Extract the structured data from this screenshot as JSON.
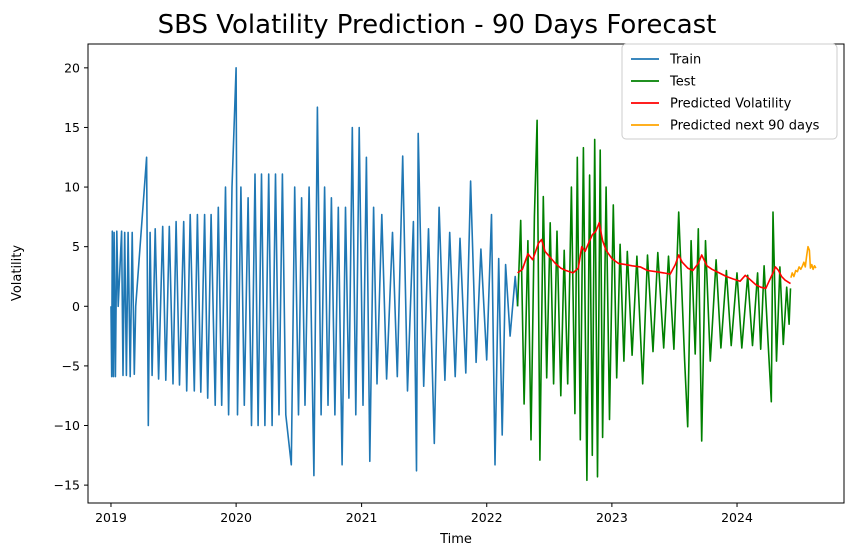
{
  "chart_data": {
    "type": "line",
    "title": "SBS Volatility Prediction - 90 Days Forecast",
    "xlabel": "Time",
    "ylabel": "Volatility",
    "xlim": [
      "2018-10-26",
      "2024-11-08"
    ],
    "ylim": [
      -16.5,
      22
    ],
    "x_ticks": [
      "2019",
      "2020",
      "2021",
      "2022",
      "2023",
      "2024"
    ],
    "y_ticks": [
      -15,
      -10,
      -5,
      0,
      5,
      10,
      15,
      20
    ],
    "grid": false,
    "legend_position": "top-right",
    "series": [
      {
        "name": "Train",
        "color": "#1f77b4",
        "points": [
          [
            "2019-01-01",
            0
          ],
          [
            "2019-01-03",
            -5.9
          ],
          [
            "2019-01-05",
            6.3
          ],
          [
            "2019-01-08",
            -5.9
          ],
          [
            "2019-01-10",
            6.2
          ],
          [
            "2019-01-14",
            -5.9
          ],
          [
            "2019-01-18",
            6.3
          ],
          [
            "2019-01-22",
            0
          ],
          [
            "2019-02-01",
            6.3
          ],
          [
            "2019-02-05",
            -5.8
          ],
          [
            "2019-02-10",
            6.2
          ],
          [
            "2019-02-15",
            -5.8
          ],
          [
            "2019-02-20",
            6.2
          ],
          [
            "2019-02-26",
            -5.9
          ],
          [
            "2019-03-04",
            6.2
          ],
          [
            "2019-03-10",
            -5.7
          ],
          [
            "2019-03-14",
            0
          ],
          [
            "2019-04-15",
            12.5
          ],
          [
            "2019-04-20",
            -10
          ],
          [
            "2019-04-25",
            6.2
          ],
          [
            "2019-05-01",
            -5.8
          ],
          [
            "2019-05-10",
            6.5
          ],
          [
            "2019-05-20",
            -6.1
          ],
          [
            "2019-06-01",
            6.7
          ],
          [
            "2019-06-10",
            -6.2
          ],
          [
            "2019-06-20",
            6.7
          ],
          [
            "2019-07-01",
            -6.5
          ],
          [
            "2019-07-10",
            7.1
          ],
          [
            "2019-07-20",
            -6.6
          ],
          [
            "2019-08-01",
            7.1
          ],
          [
            "2019-08-10",
            -7.1
          ],
          [
            "2019-08-20",
            7.7
          ],
          [
            "2019-09-01",
            -7.1
          ],
          [
            "2019-09-10",
            7.7
          ],
          [
            "2019-09-20",
            -7.2
          ],
          [
            "2019-10-01",
            7.7
          ],
          [
            "2019-10-10",
            -7.7
          ],
          [
            "2019-10-20",
            7.7
          ],
          [
            "2019-11-01",
            -8.3
          ],
          [
            "2019-11-10",
            8.3
          ],
          [
            "2019-11-20",
            -8.3
          ],
          [
            "2019-12-01",
            10
          ],
          [
            "2019-12-10",
            -9.1
          ],
          [
            "2019-12-20",
            10
          ],
          [
            "2020-01-01",
            20
          ],
          [
            "2020-01-05",
            -9.1
          ],
          [
            "2020-01-15",
            10
          ],
          [
            "2020-01-25",
            -8.3
          ],
          [
            "2020-02-05",
            9.1
          ],
          [
            "2020-02-15",
            -10
          ],
          [
            "2020-02-25",
            11.1
          ],
          [
            "2020-03-05",
            -10
          ],
          [
            "2020-03-15",
            11.1
          ],
          [
            "2020-03-25",
            -10
          ],
          [
            "2020-04-05",
            11.1
          ],
          [
            "2020-04-15",
            -10
          ],
          [
            "2020-04-25",
            11.1
          ],
          [
            "2020-05-05",
            -9.1
          ],
          [
            "2020-05-15",
            11.1
          ],
          [
            "2020-05-25",
            -9.1
          ],
          [
            "2020-06-10",
            -13.3
          ],
          [
            "2020-06-20",
            10
          ],
          [
            "2020-07-01",
            -9.1
          ],
          [
            "2020-07-10",
            9.1
          ],
          [
            "2020-07-20",
            -8.3
          ],
          [
            "2020-08-01",
            10
          ],
          [
            "2020-08-15",
            -14.2
          ],
          [
            "2020-08-25",
            16.7
          ],
          [
            "2020-09-05",
            -9.1
          ],
          [
            "2020-09-15",
            10
          ],
          [
            "2020-09-25",
            -8.3
          ],
          [
            "2020-10-05",
            9.1
          ],
          [
            "2020-10-15",
            -9.1
          ],
          [
            "2020-10-25",
            8.3
          ],
          [
            "2020-11-05",
            -13.3
          ],
          [
            "2020-11-15",
            8.3
          ],
          [
            "2020-11-25",
            -7.7
          ],
          [
            "2020-12-05",
            15
          ],
          [
            "2020-12-15",
            -9.1
          ],
          [
            "2020-12-25",
            15
          ],
          [
            "2021-01-05",
            -8.3
          ],
          [
            "2021-01-15",
            12.5
          ],
          [
            "2021-01-25",
            -13
          ],
          [
            "2021-02-05",
            8.3
          ],
          [
            "2021-02-15",
            -6.5
          ],
          [
            "2021-03-01",
            7.7
          ],
          [
            "2021-03-15",
            -6.1
          ],
          [
            "2021-04-01",
            6.2
          ],
          [
            "2021-04-15",
            -5.9
          ],
          [
            "2021-05-01",
            12.6
          ],
          [
            "2021-05-15",
            -7.1
          ],
          [
            "2021-06-01",
            7.1
          ],
          [
            "2021-06-10",
            -13.8
          ],
          [
            "2021-06-15",
            14.5
          ],
          [
            "2021-07-01",
            -6.7
          ],
          [
            "2021-07-15",
            6.5
          ],
          [
            "2021-08-01",
            -11.5
          ],
          [
            "2021-08-15",
            8.3
          ],
          [
            "2021-09-01",
            -6.2
          ],
          [
            "2021-09-15",
            6.2
          ],
          [
            "2021-10-01",
            -5.9
          ],
          [
            "2021-10-15",
            5.7
          ],
          [
            "2021-11-01",
            -5.6
          ],
          [
            "2021-11-15",
            10.5
          ],
          [
            "2021-12-01",
            -4.7
          ],
          [
            "2021-12-15",
            4.8
          ],
          [
            "2022-01-01",
            -4.5
          ],
          [
            "2022-01-15",
            7.7
          ],
          [
            "2022-01-25",
            -13.3
          ],
          [
            "2022-02-05",
            4
          ],
          [
            "2022-02-15",
            -10.8
          ],
          [
            "2022-02-25",
            3.5
          ],
          [
            "2022-03-10",
            -2.5
          ],
          [
            "2022-03-25",
            2.5
          ],
          [
            "2022-04-01",
            0
          ]
        ]
      },
      {
        "name": "Test",
        "color": "#008000",
        "points": [
          [
            "2022-04-01",
            0
          ],
          [
            "2022-04-10",
            7.2
          ],
          [
            "2022-04-20",
            -8.2
          ],
          [
            "2022-05-01",
            5.5
          ],
          [
            "2022-05-10",
            -11.2
          ],
          [
            "2022-05-20",
            7.5
          ],
          [
            "2022-05-28",
            15.6
          ],
          [
            "2022-06-05",
            -12.9
          ],
          [
            "2022-06-15",
            9.2
          ],
          [
            "2022-06-25",
            -6
          ],
          [
            "2022-07-05",
            7
          ],
          [
            "2022-07-15",
            -6.5
          ],
          [
            "2022-07-25",
            6.3
          ],
          [
            "2022-08-05",
            -7.5
          ],
          [
            "2022-08-15",
            4.7
          ],
          [
            "2022-08-25",
            -6.5
          ],
          [
            "2022-09-05",
            10
          ],
          [
            "2022-09-15",
            -9
          ],
          [
            "2022-09-22",
            12.5
          ],
          [
            "2022-10-01",
            -11.2
          ],
          [
            "2022-10-10",
            13.3
          ],
          [
            "2022-10-20",
            -14.6
          ],
          [
            "2022-10-28",
            11
          ],
          [
            "2022-11-05",
            -12.5
          ],
          [
            "2022-11-12",
            14
          ],
          [
            "2022-11-20",
            -14.3
          ],
          [
            "2022-11-28",
            13.1
          ],
          [
            "2022-12-05",
            -11
          ],
          [
            "2022-12-15",
            10
          ],
          [
            "2022-12-25",
            -9.5
          ],
          [
            "2023-01-05",
            8.5
          ],
          [
            "2023-01-15",
            -6
          ],
          [
            "2023-01-25",
            5.2
          ],
          [
            "2023-02-05",
            -4.6
          ],
          [
            "2023-02-15",
            4.6
          ],
          [
            "2023-03-01",
            -4.1
          ],
          [
            "2023-03-15",
            4.2
          ],
          [
            "2023-04-01",
            -6.5
          ],
          [
            "2023-04-15",
            4.3
          ],
          [
            "2023-05-01",
            -3.8
          ],
          [
            "2023-05-15",
            4.5
          ],
          [
            "2023-06-01",
            -3.5
          ],
          [
            "2023-06-15",
            4.2
          ],
          [
            "2023-07-01",
            -3.6
          ],
          [
            "2023-07-15",
            7.9
          ],
          [
            "2023-08-01",
            -4.5
          ],
          [
            "2023-08-10",
            -10.1
          ],
          [
            "2023-08-20",
            5.5
          ],
          [
            "2023-09-01",
            -4
          ],
          [
            "2023-09-10",
            6.5
          ],
          [
            "2023-09-20",
            -11.3
          ],
          [
            "2023-10-01",
            5.5
          ],
          [
            "2023-10-15",
            -4.6
          ],
          [
            "2023-11-01",
            3.9
          ],
          [
            "2023-11-15",
            -3.5
          ],
          [
            "2023-12-01",
            3
          ],
          [
            "2023-12-15",
            -3.3
          ],
          [
            "2024-01-01",
            2.8
          ],
          [
            "2024-01-15",
            -3.5
          ],
          [
            "2024-02-01",
            2.6
          ],
          [
            "2024-02-15",
            -3.3
          ],
          [
            "2024-03-01",
            2.8
          ],
          [
            "2024-03-10",
            -3.6
          ],
          [
            "2024-03-20",
            3.4
          ],
          [
            "2024-04-01",
            -3.2
          ],
          [
            "2024-04-10",
            -8
          ],
          [
            "2024-04-15",
            7.9
          ],
          [
            "2024-04-25",
            -4.6
          ],
          [
            "2024-05-05",
            3.3
          ],
          [
            "2024-05-15",
            -3.2
          ],
          [
            "2024-05-25",
            1.6
          ],
          [
            "2024-06-01",
            -1.5
          ],
          [
            "2024-06-05",
            1.5
          ]
        ]
      },
      {
        "name": "Predicted Volatility",
        "color": "#ff0000",
        "points": [
          [
            "2022-04-01",
            2.8
          ],
          [
            "2022-04-15",
            3.1
          ],
          [
            "2022-05-01",
            4.4
          ],
          [
            "2022-05-15",
            3.9
          ],
          [
            "2022-06-01",
            5.3
          ],
          [
            "2022-06-10",
            5.6
          ],
          [
            "2022-06-20",
            4.6
          ],
          [
            "2022-07-05",
            4.1
          ],
          [
            "2022-07-20",
            3.6
          ],
          [
            "2022-08-05",
            3.2
          ],
          [
            "2022-08-20",
            3
          ],
          [
            "2022-09-10",
            2.8
          ],
          [
            "2022-09-25",
            3.2
          ],
          [
            "2022-10-05",
            5
          ],
          [
            "2022-10-15",
            4.6
          ],
          [
            "2022-10-25",
            5.3
          ],
          [
            "2022-11-05",
            6
          ],
          [
            "2022-11-15",
            6.3
          ],
          [
            "2022-11-25",
            7
          ],
          [
            "2022-12-05",
            5.5
          ],
          [
            "2022-12-15",
            4.7
          ],
          [
            "2023-01-01",
            4
          ],
          [
            "2023-01-20",
            3.6
          ],
          [
            "2023-02-10",
            3.5
          ],
          [
            "2023-03-01",
            3.4
          ],
          [
            "2023-03-25",
            3.3
          ],
          [
            "2023-04-15",
            3
          ],
          [
            "2023-05-10",
            2.9
          ],
          [
            "2023-06-01",
            2.8
          ],
          [
            "2023-06-20",
            2.7
          ],
          [
            "2023-07-05",
            3.5
          ],
          [
            "2023-07-15",
            4.3
          ],
          [
            "2023-07-25",
            3.7
          ],
          [
            "2023-08-10",
            3.2
          ],
          [
            "2023-08-25",
            3
          ],
          [
            "2023-09-10",
            3.6
          ],
          [
            "2023-09-20",
            4.3
          ],
          [
            "2023-10-05",
            3.4
          ],
          [
            "2023-10-20",
            3.1
          ],
          [
            "2023-11-10",
            2.8
          ],
          [
            "2023-12-01",
            2.5
          ],
          [
            "2023-12-20",
            2.3
          ],
          [
            "2024-01-10",
            2.1
          ],
          [
            "2024-01-25",
            2.6
          ],
          [
            "2024-02-10",
            2.2
          ],
          [
            "2024-02-25",
            1.8
          ],
          [
            "2024-03-10",
            1.6
          ],
          [
            "2024-03-25",
            1.5
          ],
          [
            "2024-04-05",
            2.2
          ],
          [
            "2024-04-15",
            2.8
          ],
          [
            "2024-04-22",
            3.3
          ],
          [
            "2024-05-01",
            3
          ],
          [
            "2024-05-10",
            2.5
          ],
          [
            "2024-05-20",
            2.2
          ],
          [
            "2024-06-05",
            1.9
          ]
        ]
      },
      {
        "name": "Predicted next 90 days",
        "color": "#ffa500",
        "points": [
          [
            "2024-06-06",
            2.4
          ],
          [
            "2024-06-10",
            2.8
          ],
          [
            "2024-06-15",
            2.5
          ],
          [
            "2024-06-20",
            3
          ],
          [
            "2024-06-25",
            2.9
          ],
          [
            "2024-06-30",
            3.3
          ],
          [
            "2024-07-05",
            3.1
          ],
          [
            "2024-07-10",
            3.4
          ],
          [
            "2024-07-14",
            3.7
          ],
          [
            "2024-07-18",
            3.3
          ],
          [
            "2024-07-22",
            4.2
          ],
          [
            "2024-07-26",
            5
          ],
          [
            "2024-07-30",
            4.7
          ],
          [
            "2024-08-02",
            3.2
          ],
          [
            "2024-08-06",
            3.5
          ],
          [
            "2024-08-10",
            3.1
          ],
          [
            "2024-08-14",
            3.4
          ],
          [
            "2024-08-18",
            3.2
          ]
        ]
      }
    ]
  }
}
